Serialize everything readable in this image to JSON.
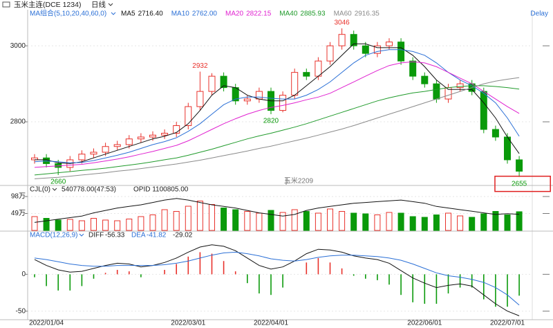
{
  "chart_data": [
    {
      "type": "candlestick",
      "title": "玉米主连(DCE 1234)",
      "period": "日线",
      "indicator": "MA组合(5,10,20,40,60,0)",
      "contract_label": "玉米2209",
      "status": "Delay",
      "categories": [
        null,
        "2022/01/04",
        null,
        null,
        null,
        null,
        null,
        null,
        null,
        null,
        null,
        null,
        null,
        "2022/03/01",
        null,
        null,
        null,
        null,
        null,
        null,
        "2022/04/01",
        null,
        null,
        null,
        null,
        null,
        null,
        null,
        null,
        null,
        null,
        null,
        null,
        "2022/06/01",
        null,
        null,
        null,
        null,
        null,
        null,
        "2022/07/01",
        null
      ],
      "open": [
        2700,
        2705,
        2690,
        2680,
        2700,
        2715,
        2720,
        2735,
        2740,
        2755,
        2760,
        2765,
        2770,
        2790,
        2840,
        2880,
        2920,
        2890,
        2855,
        2860,
        2880,
        2830,
        2870,
        2930,
        2920,
        2960,
        3000,
        3030,
        3000,
        2980,
        3000,
        3010,
        2960,
        2920,
        2900,
        2860,
        2890,
        2900,
        2880,
        2780,
        2760,
        2700
      ],
      "high": [
        2715,
        2715,
        2700,
        2710,
        2725,
        2730,
        2745,
        2750,
        2765,
        2770,
        2775,
        2780,
        2800,
        2850,
        2932,
        2928,
        2930,
        2900,
        2870,
        2890,
        2890,
        2880,
        2940,
        2940,
        2970,
        3010,
        3046,
        3040,
        3010,
        3010,
        3020,
        3020,
        2970,
        2930,
        2910,
        2900,
        2910,
        2910,
        2890,
        2790,
        2770,
        2710
      ],
      "low": [
        2690,
        2680,
        2660,
        2670,
        2690,
        2705,
        2710,
        2725,
        2730,
        2745,
        2750,
        2755,
        2760,
        2780,
        2830,
        2870,
        2880,
        2845,
        2845,
        2850,
        2820,
        2825,
        2860,
        2910,
        2910,
        2950,
        2990,
        2990,
        2970,
        2970,
        2990,
        2950,
        2910,
        2890,
        2850,
        2850,
        2880,
        2870,
        2770,
        2750,
        2690,
        2655
      ],
      "close": [
        2705,
        2690,
        2680,
        2700,
        2715,
        2720,
        2735,
        2740,
        2755,
        2760,
        2765,
        2770,
        2790,
        2840,
        2880,
        2920,
        2890,
        2855,
        2860,
        2880,
        2830,
        2870,
        2930,
        2920,
        2960,
        3000,
        3030,
        3000,
        2980,
        3000,
        3010,
        2960,
        2920,
        2900,
        2860,
        2890,
        2900,
        2880,
        2780,
        2760,
        2700,
        2670
      ],
      "up_color": "#e8302a",
      "down_color": "#0a9a0a",
      "ylim": [
        2638,
        3075
      ],
      "yticks": [
        2800,
        3000
      ],
      "grid": true,
      "series": [
        {
          "name": "MA5",
          "color": "#111111",
          "legend_value": "2716.40",
          "values": [
            2700,
            2700,
            2692,
            2690,
            2695,
            2705,
            2715,
            2725,
            2735,
            2745,
            2755,
            2762,
            2772,
            2795,
            2830,
            2870,
            2895,
            2890,
            2870,
            2860,
            2855,
            2855,
            2870,
            2895,
            2920,
            2945,
            2975,
            3005,
            3005,
            2995,
            2995,
            2995,
            2975,
            2945,
            2910,
            2885,
            2885,
            2885,
            2850,
            2810,
            2760,
            2716.4
          ]
        },
        {
          "name": "MA10",
          "color": "#2a6fd6",
          "legend_value": "2762.00",
          "values": [
            2695,
            2697,
            2695,
            2692,
            2693,
            2698,
            2705,
            2712,
            2720,
            2730,
            2740,
            2748,
            2758,
            2775,
            2795,
            2820,
            2845,
            2860,
            2865,
            2865,
            2862,
            2860,
            2860,
            2870,
            2885,
            2905,
            2930,
            2955,
            2975,
            2985,
            2990,
            2990,
            2985,
            2975,
            2955,
            2930,
            2910,
            2895,
            2875,
            2850,
            2810,
            2762
          ]
        },
        {
          "name": "MA20",
          "color": "#e020d0",
          "legend_value": "2822.15",
          "values": [
            2680,
            2682,
            2684,
            2686,
            2688,
            2692,
            2697,
            2702,
            2708,
            2715,
            2722,
            2730,
            2738,
            2750,
            2765,
            2780,
            2795,
            2808,
            2820,
            2830,
            2838,
            2843,
            2850,
            2858,
            2865,
            2875,
            2890,
            2905,
            2920,
            2935,
            2948,
            2955,
            2958,
            2955,
            2945,
            2930,
            2915,
            2900,
            2880,
            2860,
            2840,
            2822.15
          ]
        },
        {
          "name": "MA40",
          "color": "#1f9a2a",
          "legend_value": "2885.93",
          "values": [
            2660,
            2663,
            2666,
            2669,
            2672,
            2675,
            2678,
            2682,
            2686,
            2690,
            2695,
            2700,
            2705,
            2712,
            2720,
            2728,
            2737,
            2746,
            2755,
            2763,
            2770,
            2778,
            2786,
            2795,
            2805,
            2815,
            2825,
            2835,
            2845,
            2855,
            2863,
            2870,
            2876,
            2880,
            2885,
            2890,
            2893,
            2895,
            2895,
            2893,
            2890,
            2885.93
          ]
        },
        {
          "name": "MA60",
          "color": "#8a8a8a",
          "legend_value": "2916.35",
          "values": [
            2650,
            2652,
            2654,
            2657,
            2660,
            2663,
            2666,
            2670,
            2673,
            2677,
            2681,
            2685,
            2689,
            2694,
            2699,
            2705,
            2711,
            2717,
            2723,
            2730,
            2736,
            2743,
            2750,
            2757,
            2765,
            2773,
            2781,
            2790,
            2800,
            2810,
            2820,
            2830,
            2840,
            2850,
            2860,
            2870,
            2880,
            2890,
            2900,
            2907,
            2912,
            2916.35
          ]
        }
      ],
      "annotations": [
        {
          "field": "low",
          "index": 2,
          "color": "#0a9a0a",
          "boxed": false
        },
        {
          "field": "high",
          "index": 14,
          "color": "#e8302a",
          "boxed": false
        },
        {
          "field": "low",
          "index": 20,
          "color": "#0a9a0a",
          "boxed": false
        },
        {
          "field": "high",
          "index": 26,
          "color": "#e8302a",
          "boxed": false
        },
        {
          "field": "low",
          "index": 41,
          "color": "#0a9a0a",
          "boxed": true
        }
      ]
    },
    {
      "type": "bar",
      "title": "CJL(0)",
      "stats": "540778.00(47:53)",
      "oi_label": "OPID 1100805.00",
      "values": [
        40,
        35,
        30,
        32,
        28,
        35,
        30,
        28,
        33,
        40,
        45,
        60,
        55,
        70,
        85,
        75,
        65,
        60,
        55,
        50,
        58,
        52,
        60,
        55,
        50,
        62,
        55,
        50,
        48,
        45,
        52,
        50,
        40,
        38,
        45,
        50,
        42,
        38,
        48,
        55,
        45,
        54.08
      ],
      "ylim": [
        0,
        104
      ],
      "yticks": [
        {
          "value": 98,
          "label": "98万"
        },
        {
          "value": 49,
          "label": "49万"
        }
      ],
      "y2lim": [
        90,
        135
      ],
      "series": [
        {
          "color": "#111111",
          "axis": "y2",
          "values": [
            100,
            102,
            104,
            106,
            108,
            112,
            115,
            118,
            120,
            122,
            125,
            128,
            130,
            128,
            125,
            122,
            120,
            118,
            115,
            112,
            110,
            108,
            110,
            115,
            118,
            120,
            122,
            124,
            125,
            126,
            127,
            128,
            126,
            124,
            120,
            118,
            116,
            114,
            112,
            110,
            111,
            110.08
          ]
        }
      ]
    },
    {
      "type": "macd",
      "title": "MACD(12,26,9)",
      "ylim": [
        -61.6,
        47.3
      ],
      "yticks": [
        0,
        -50
      ],
      "series": [
        {
          "name": "DIFF",
          "color": "#111111",
          "values": [
            20,
            12,
            6,
            3,
            4,
            8,
            12,
            15,
            14,
            10,
            12,
            16,
            22,
            30,
            37,
            40,
            38,
            32,
            22,
            12,
            7,
            10,
            18,
            28,
            34,
            33,
            30,
            25,
            22,
            20,
            15,
            5,
            -5,
            -12,
            -18,
            -15,
            -13,
            -16,
            -28,
            -40,
            -50,
            -56.33
          ]
        },
        {
          "name": "DEA",
          "color": "#2a6fd6",
          "values": [
            22,
            20,
            17,
            14,
            12,
            11,
            11,
            12,
            12,
            12,
            12,
            13,
            15,
            18,
            22,
            26,
            29,
            30,
            28,
            25,
            21,
            19,
            18,
            20,
            23,
            25,
            26,
            26,
            25,
            24,
            22,
            19,
            14,
            8,
            2,
            -2,
            -4,
            -7,
            -11,
            -18,
            -28,
            -41.82
          ]
        }
      ],
      "histogram": {
        "up_color": "#e8302a",
        "down_color": "#0a9a0a",
        "values": [
          -4,
          -16,
          -22,
          -22,
          -16,
          -6,
          2,
          6,
          4,
          -4,
          0,
          6,
          14,
          24,
          30,
          28,
          18,
          4,
          -12,
          -26,
          -28,
          -18,
          0,
          16,
          22,
          16,
          8,
          -2,
          -6,
          -8,
          -14,
          -28,
          -38,
          -40,
          -40,
          -26,
          -18,
          -18,
          -34,
          -44,
          -44,
          -29.02
        ]
      }
    }
  ]
}
